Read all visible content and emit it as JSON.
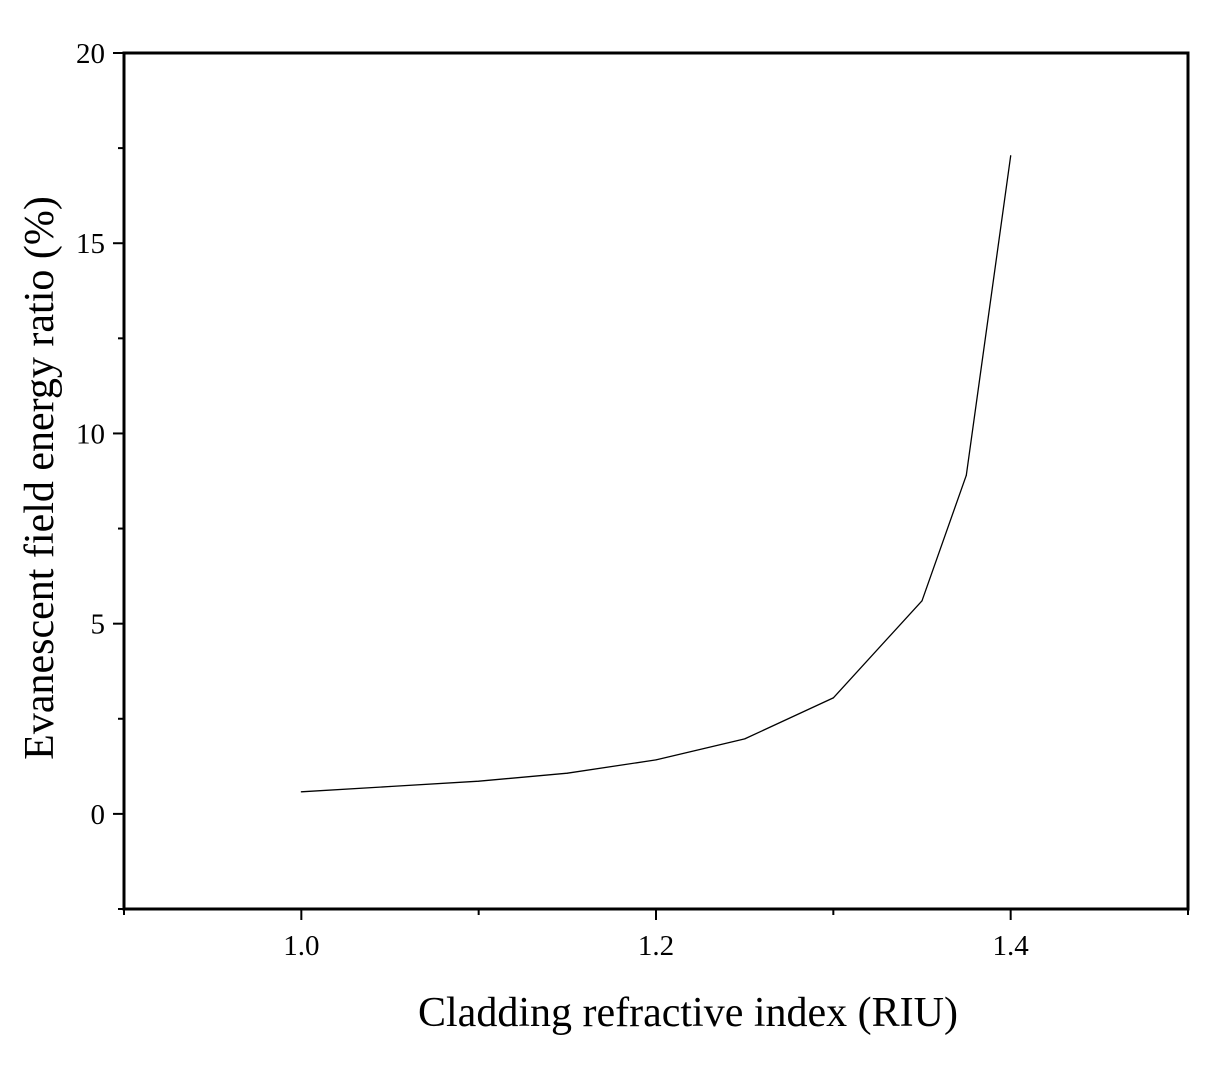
{
  "chart_data": {
    "type": "line",
    "title": "",
    "xlabel": "Cladding refractive index (RIU)",
    "ylabel": "Evanescent field energy ratio (%)",
    "xlim": [
      0.9,
      1.5
    ],
    "ylim": [
      -2.5,
      20
    ],
    "x_ticks": [
      {
        "value": 1.0,
        "label": "1.0"
      },
      {
        "value": 1.2,
        "label": "1.2"
      },
      {
        "value": 1.4,
        "label": "1.4"
      }
    ],
    "x_minor_ticks": [
      0.9,
      1.1,
      1.3,
      1.5
    ],
    "y_ticks": [
      {
        "value": 0,
        "label": "0"
      },
      {
        "value": 5,
        "label": "5"
      },
      {
        "value": 10,
        "label": "10"
      },
      {
        "value": 15,
        "label": "15"
      },
      {
        "value": 20,
        "label": "20"
      }
    ],
    "y_minor_ticks": [
      -2.5,
      2.5,
      7.5,
      12.5,
      17.5
    ],
    "grid": false,
    "legend": "none",
    "line_color": "#000000",
    "series": [
      {
        "x": [
          1.0,
          1.05,
          1.1,
          1.15,
          1.2,
          1.25,
          1.3,
          1.35,
          1.375,
          1.4
        ],
        "values": [
          0.58,
          0.72,
          0.86,
          1.07,
          1.42,
          1.97,
          3.05,
          5.6,
          8.9,
          17.3
        ]
      }
    ]
  }
}
